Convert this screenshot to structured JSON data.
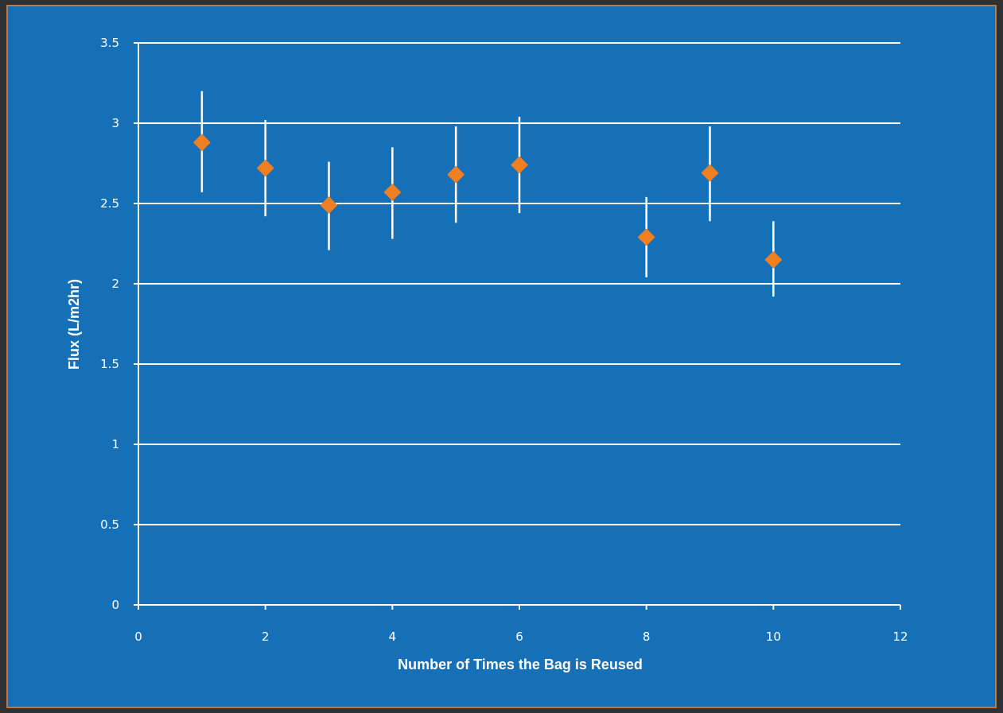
{
  "chart_data": {
    "type": "scatter",
    "title": "",
    "xlabel": "Number of Times the Bag is Reused",
    "ylabel": "Flux (L/m2hr)",
    "xlim": [
      0,
      12
    ],
    "ylim": [
      0,
      3.5
    ],
    "x_ticks": [
      "0",
      "2",
      "4",
      "6",
      "8",
      "10",
      "12"
    ],
    "y_ticks": [
      "0",
      "0.5",
      "1",
      "1.5",
      "2",
      "2.5",
      "3",
      "3.5"
    ],
    "grid": "horizontal",
    "legend": "none",
    "marker": "diamond",
    "colors": {
      "background": "#1570b8",
      "border": "#c8762e",
      "marker": "#f07f21",
      "gridline": "#ffffff",
      "error_bar": "#ffffff",
      "text": "#ffffff"
    },
    "points": [
      {
        "x": 1,
        "y": 2.88,
        "err_low": 2.57,
        "err_high": 3.2
      },
      {
        "x": 2,
        "y": 2.72,
        "err_low": 2.42,
        "err_high": 3.02
      },
      {
        "x": 3,
        "y": 2.49,
        "err_low": 2.21,
        "err_high": 2.76
      },
      {
        "x": 4,
        "y": 2.57,
        "err_low": 2.28,
        "err_high": 2.85
      },
      {
        "x": 5,
        "y": 2.68,
        "err_low": 2.38,
        "err_high": 2.98
      },
      {
        "x": 6,
        "y": 2.74,
        "err_low": 2.44,
        "err_high": 3.04
      },
      {
        "x": 8,
        "y": 2.29,
        "err_low": 2.04,
        "err_high": 2.54
      },
      {
        "x": 9,
        "y": 2.69,
        "err_low": 2.39,
        "err_high": 2.98
      },
      {
        "x": 10,
        "y": 2.15,
        "err_low": 1.92,
        "err_high": 2.39
      }
    ]
  }
}
